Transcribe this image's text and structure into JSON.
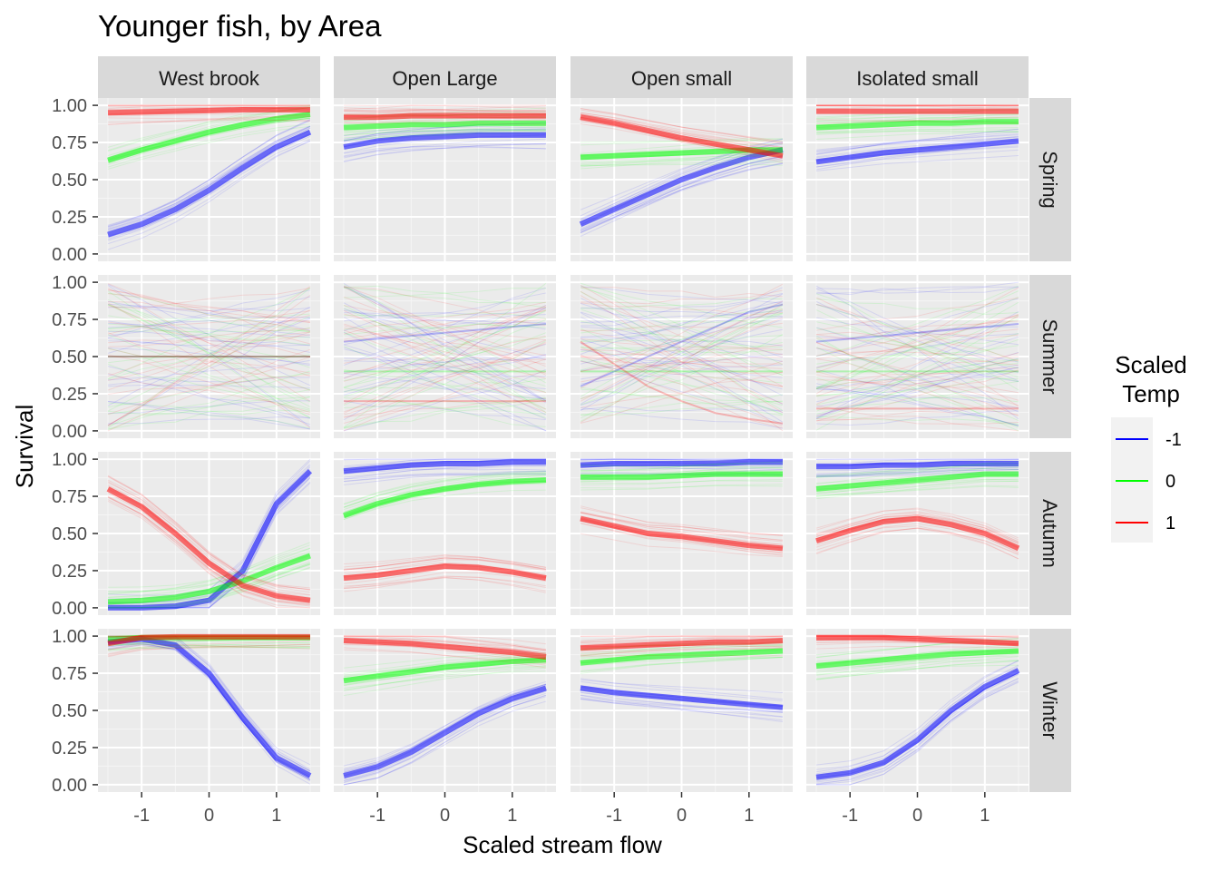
{
  "chart_data": {
    "type": "line",
    "title": "Younger fish, by Area",
    "xlabel": "Scaled stream flow",
    "ylabel": "Survival",
    "xlim": [
      -1.5,
      1.5
    ],
    "ylim": [
      0,
      1
    ],
    "x_ticks": [
      -1,
      0,
      1
    ],
    "x_tick_labels": [
      "-1",
      "0",
      "1"
    ],
    "y_ticks": [
      0,
      0.25,
      0.5,
      0.75,
      1
    ],
    "y_tick_labels": [
      "0.00",
      "0.25",
      "0.50",
      "0.75",
      "1.00"
    ],
    "grid": true,
    "facet_columns": [
      "West brook",
      "Open Large",
      "Open small",
      "Isolated small"
    ],
    "facet_rows": [
      "Spring",
      "Summer",
      "Autumn",
      "Winter"
    ],
    "x": [
      -1.5,
      -1.0,
      -0.5,
      0.0,
      0.5,
      1.0,
      1.5
    ],
    "legend": {
      "title_lines": [
        "Scaled",
        "Temp"
      ],
      "position": "right",
      "entries": [
        {
          "label": "-1",
          "color": "#0000ff"
        },
        {
          "label": "0",
          "color": "#00ff00"
        },
        {
          "label": "1",
          "color": "#ff0000"
        }
      ]
    },
    "series_note": "central survival curves per temperature level",
    "panels": [
      {
        "row": "Spring",
        "col": "West brook",
        "series": [
          {
            "temp": "-1",
            "values": [
              0.13,
              0.2,
              0.3,
              0.43,
              0.58,
              0.72,
              0.82
            ]
          },
          {
            "temp": "0",
            "values": [
              0.63,
              0.7,
              0.76,
              0.82,
              0.87,
              0.91,
              0.94
            ]
          },
          {
            "temp": "1",
            "values": [
              0.95,
              0.955,
              0.96,
              0.965,
              0.97,
              0.97,
              0.97
            ]
          }
        ]
      },
      {
        "row": "Spring",
        "col": "Open Large",
        "series": [
          {
            "temp": "-1",
            "values": [
              0.72,
              0.76,
              0.78,
              0.79,
              0.8,
              0.8,
              0.8
            ]
          },
          {
            "temp": "0",
            "values": [
              0.85,
              0.86,
              0.87,
              0.87,
              0.88,
              0.88,
              0.88
            ]
          },
          {
            "temp": "1",
            "values": [
              0.92,
              0.92,
              0.93,
              0.93,
              0.93,
              0.93,
              0.93
            ]
          }
        ]
      },
      {
        "row": "Spring",
        "col": "Open small",
        "series": [
          {
            "temp": "-1",
            "values": [
              0.2,
              0.3,
              0.4,
              0.5,
              0.58,
              0.65,
              0.7
            ]
          },
          {
            "temp": "0",
            "values": [
              0.65,
              0.66,
              0.67,
              0.68,
              0.69,
              0.7,
              0.7
            ]
          },
          {
            "temp": "1",
            "values": [
              0.92,
              0.88,
              0.83,
              0.78,
              0.74,
              0.7,
              0.66
            ]
          }
        ]
      },
      {
        "row": "Spring",
        "col": "Isolated small",
        "series": [
          {
            "temp": "-1",
            "values": [
              0.62,
              0.65,
              0.68,
              0.7,
              0.72,
              0.74,
              0.76
            ]
          },
          {
            "temp": "0",
            "values": [
              0.85,
              0.86,
              0.87,
              0.88,
              0.88,
              0.89,
              0.89
            ]
          },
          {
            "temp": "1",
            "values": [
              0.96,
              0.96,
              0.96,
              0.96,
              0.96,
              0.96,
              0.96
            ]
          }
        ]
      },
      {
        "row": "Summer",
        "col": "West brook",
        "series": [
          {
            "temp": "-1",
            "values": [
              0.5,
              0.5,
              0.5,
              0.5,
              0.5,
              0.5,
              0.5
            ]
          },
          {
            "temp": "0",
            "values": [
              0.5,
              0.5,
              0.5,
              0.5,
              0.5,
              0.5,
              0.5
            ]
          },
          {
            "temp": "1",
            "values": [
              0.5,
              0.5,
              0.5,
              0.5,
              0.5,
              0.5,
              0.5
            ]
          }
        ]
      },
      {
        "row": "Summer",
        "col": "Open Large",
        "series": [
          {
            "temp": "-1",
            "values": [
              0.6,
              0.62,
              0.64,
              0.66,
              0.68,
              0.7,
              0.72
            ]
          },
          {
            "temp": "0",
            "values": [
              0.4,
              0.4,
              0.4,
              0.4,
              0.4,
              0.4,
              0.4
            ]
          },
          {
            "temp": "1",
            "values": [
              0.2,
              0.2,
              0.2,
              0.2,
              0.2,
              0.2,
              0.2
            ]
          }
        ]
      },
      {
        "row": "Summer",
        "col": "Open small",
        "series": [
          {
            "temp": "-1",
            "values": [
              0.3,
              0.4,
              0.5,
              0.6,
              0.7,
              0.8,
              0.85
            ]
          },
          {
            "temp": "0",
            "values": [
              0.4,
              0.4,
              0.4,
              0.4,
              0.4,
              0.4,
              0.4
            ]
          },
          {
            "temp": "1",
            "values": [
              0.6,
              0.45,
              0.3,
              0.2,
              0.12,
              0.08,
              0.05
            ]
          }
        ]
      },
      {
        "row": "Summer",
        "col": "Isolated small",
        "series": [
          {
            "temp": "-1",
            "values": [
              0.6,
              0.62,
              0.64,
              0.66,
              0.68,
              0.7,
              0.72
            ]
          },
          {
            "temp": "0",
            "values": [
              0.4,
              0.4,
              0.4,
              0.4,
              0.4,
              0.4,
              0.4
            ]
          },
          {
            "temp": "1",
            "values": [
              0.15,
              0.15,
              0.15,
              0.15,
              0.15,
              0.15,
              0.15
            ]
          }
        ]
      },
      {
        "row": "Autumn",
        "col": "West brook",
        "series": [
          {
            "temp": "-1",
            "values": [
              0.0,
              0.0,
              0.01,
              0.05,
              0.25,
              0.7,
              0.92
            ]
          },
          {
            "temp": "0",
            "values": [
              0.04,
              0.05,
              0.07,
              0.11,
              0.18,
              0.27,
              0.35
            ]
          },
          {
            "temp": "1",
            "values": [
              0.8,
              0.68,
              0.5,
              0.3,
              0.15,
              0.08,
              0.05
            ]
          }
        ]
      },
      {
        "row": "Autumn",
        "col": "Open Large",
        "series": [
          {
            "temp": "-1",
            "values": [
              0.92,
              0.94,
              0.96,
              0.97,
              0.97,
              0.98,
              0.98
            ]
          },
          {
            "temp": "0",
            "values": [
              0.62,
              0.7,
              0.76,
              0.8,
              0.83,
              0.85,
              0.86
            ]
          },
          {
            "temp": "1",
            "values": [
              0.2,
              0.22,
              0.25,
              0.28,
              0.27,
              0.24,
              0.2
            ]
          }
        ]
      },
      {
        "row": "Autumn",
        "col": "Open small",
        "series": [
          {
            "temp": "-1",
            "values": [
              0.96,
              0.97,
              0.97,
              0.97,
              0.97,
              0.98,
              0.98
            ]
          },
          {
            "temp": "0",
            "values": [
              0.88,
              0.88,
              0.88,
              0.89,
              0.9,
              0.9,
              0.9
            ]
          },
          {
            "temp": "1",
            "values": [
              0.6,
              0.55,
              0.5,
              0.48,
              0.45,
              0.42,
              0.4
            ]
          }
        ]
      },
      {
        "row": "Autumn",
        "col": "Isolated small",
        "series": [
          {
            "temp": "-1",
            "values": [
              0.95,
              0.95,
              0.96,
              0.96,
              0.97,
              0.97,
              0.97
            ]
          },
          {
            "temp": "0",
            "values": [
              0.8,
              0.82,
              0.84,
              0.86,
              0.88,
              0.9,
              0.9
            ]
          },
          {
            "temp": "1",
            "values": [
              0.45,
              0.52,
              0.58,
              0.6,
              0.56,
              0.5,
              0.4
            ]
          }
        ]
      },
      {
        "row": "Winter",
        "col": "West brook",
        "series": [
          {
            "temp": "-1",
            "values": [
              0.96,
              0.98,
              0.94,
              0.75,
              0.45,
              0.18,
              0.06
            ]
          },
          {
            "temp": "0",
            "values": [
              0.98,
              0.99,
              0.99,
              0.99,
              0.99,
              0.99,
              0.99
            ]
          },
          {
            "temp": "1",
            "values": [
              0.95,
              0.99,
              0.995,
              0.995,
              0.995,
              0.995,
              0.995
            ]
          }
        ]
      },
      {
        "row": "Winter",
        "col": "Open Large",
        "series": [
          {
            "temp": "-1",
            "values": [
              0.06,
              0.12,
              0.22,
              0.35,
              0.48,
              0.58,
              0.65
            ]
          },
          {
            "temp": "0",
            "values": [
              0.7,
              0.73,
              0.76,
              0.79,
              0.81,
              0.83,
              0.84
            ]
          },
          {
            "temp": "1",
            "values": [
              0.97,
              0.96,
              0.95,
              0.93,
              0.91,
              0.89,
              0.86
            ]
          }
        ]
      },
      {
        "row": "Winter",
        "col": "Open small",
        "series": [
          {
            "temp": "-1",
            "values": [
              0.65,
              0.62,
              0.6,
              0.58,
              0.56,
              0.54,
              0.52
            ]
          },
          {
            "temp": "0",
            "values": [
              0.82,
              0.84,
              0.86,
              0.87,
              0.88,
              0.89,
              0.9
            ]
          },
          {
            "temp": "1",
            "values": [
              0.92,
              0.93,
              0.94,
              0.95,
              0.96,
              0.96,
              0.97
            ]
          }
        ]
      },
      {
        "row": "Winter",
        "col": "Isolated small",
        "series": [
          {
            "temp": "-1",
            "values": [
              0.05,
              0.08,
              0.15,
              0.3,
              0.5,
              0.66,
              0.77
            ]
          },
          {
            "temp": "0",
            "values": [
              0.8,
              0.82,
              0.84,
              0.86,
              0.88,
              0.89,
              0.9
            ]
          },
          {
            "temp": "1",
            "values": [
              0.99,
              0.99,
              0.99,
              0.98,
              0.97,
              0.96,
              0.95
            ]
          }
        ]
      }
    ]
  }
}
